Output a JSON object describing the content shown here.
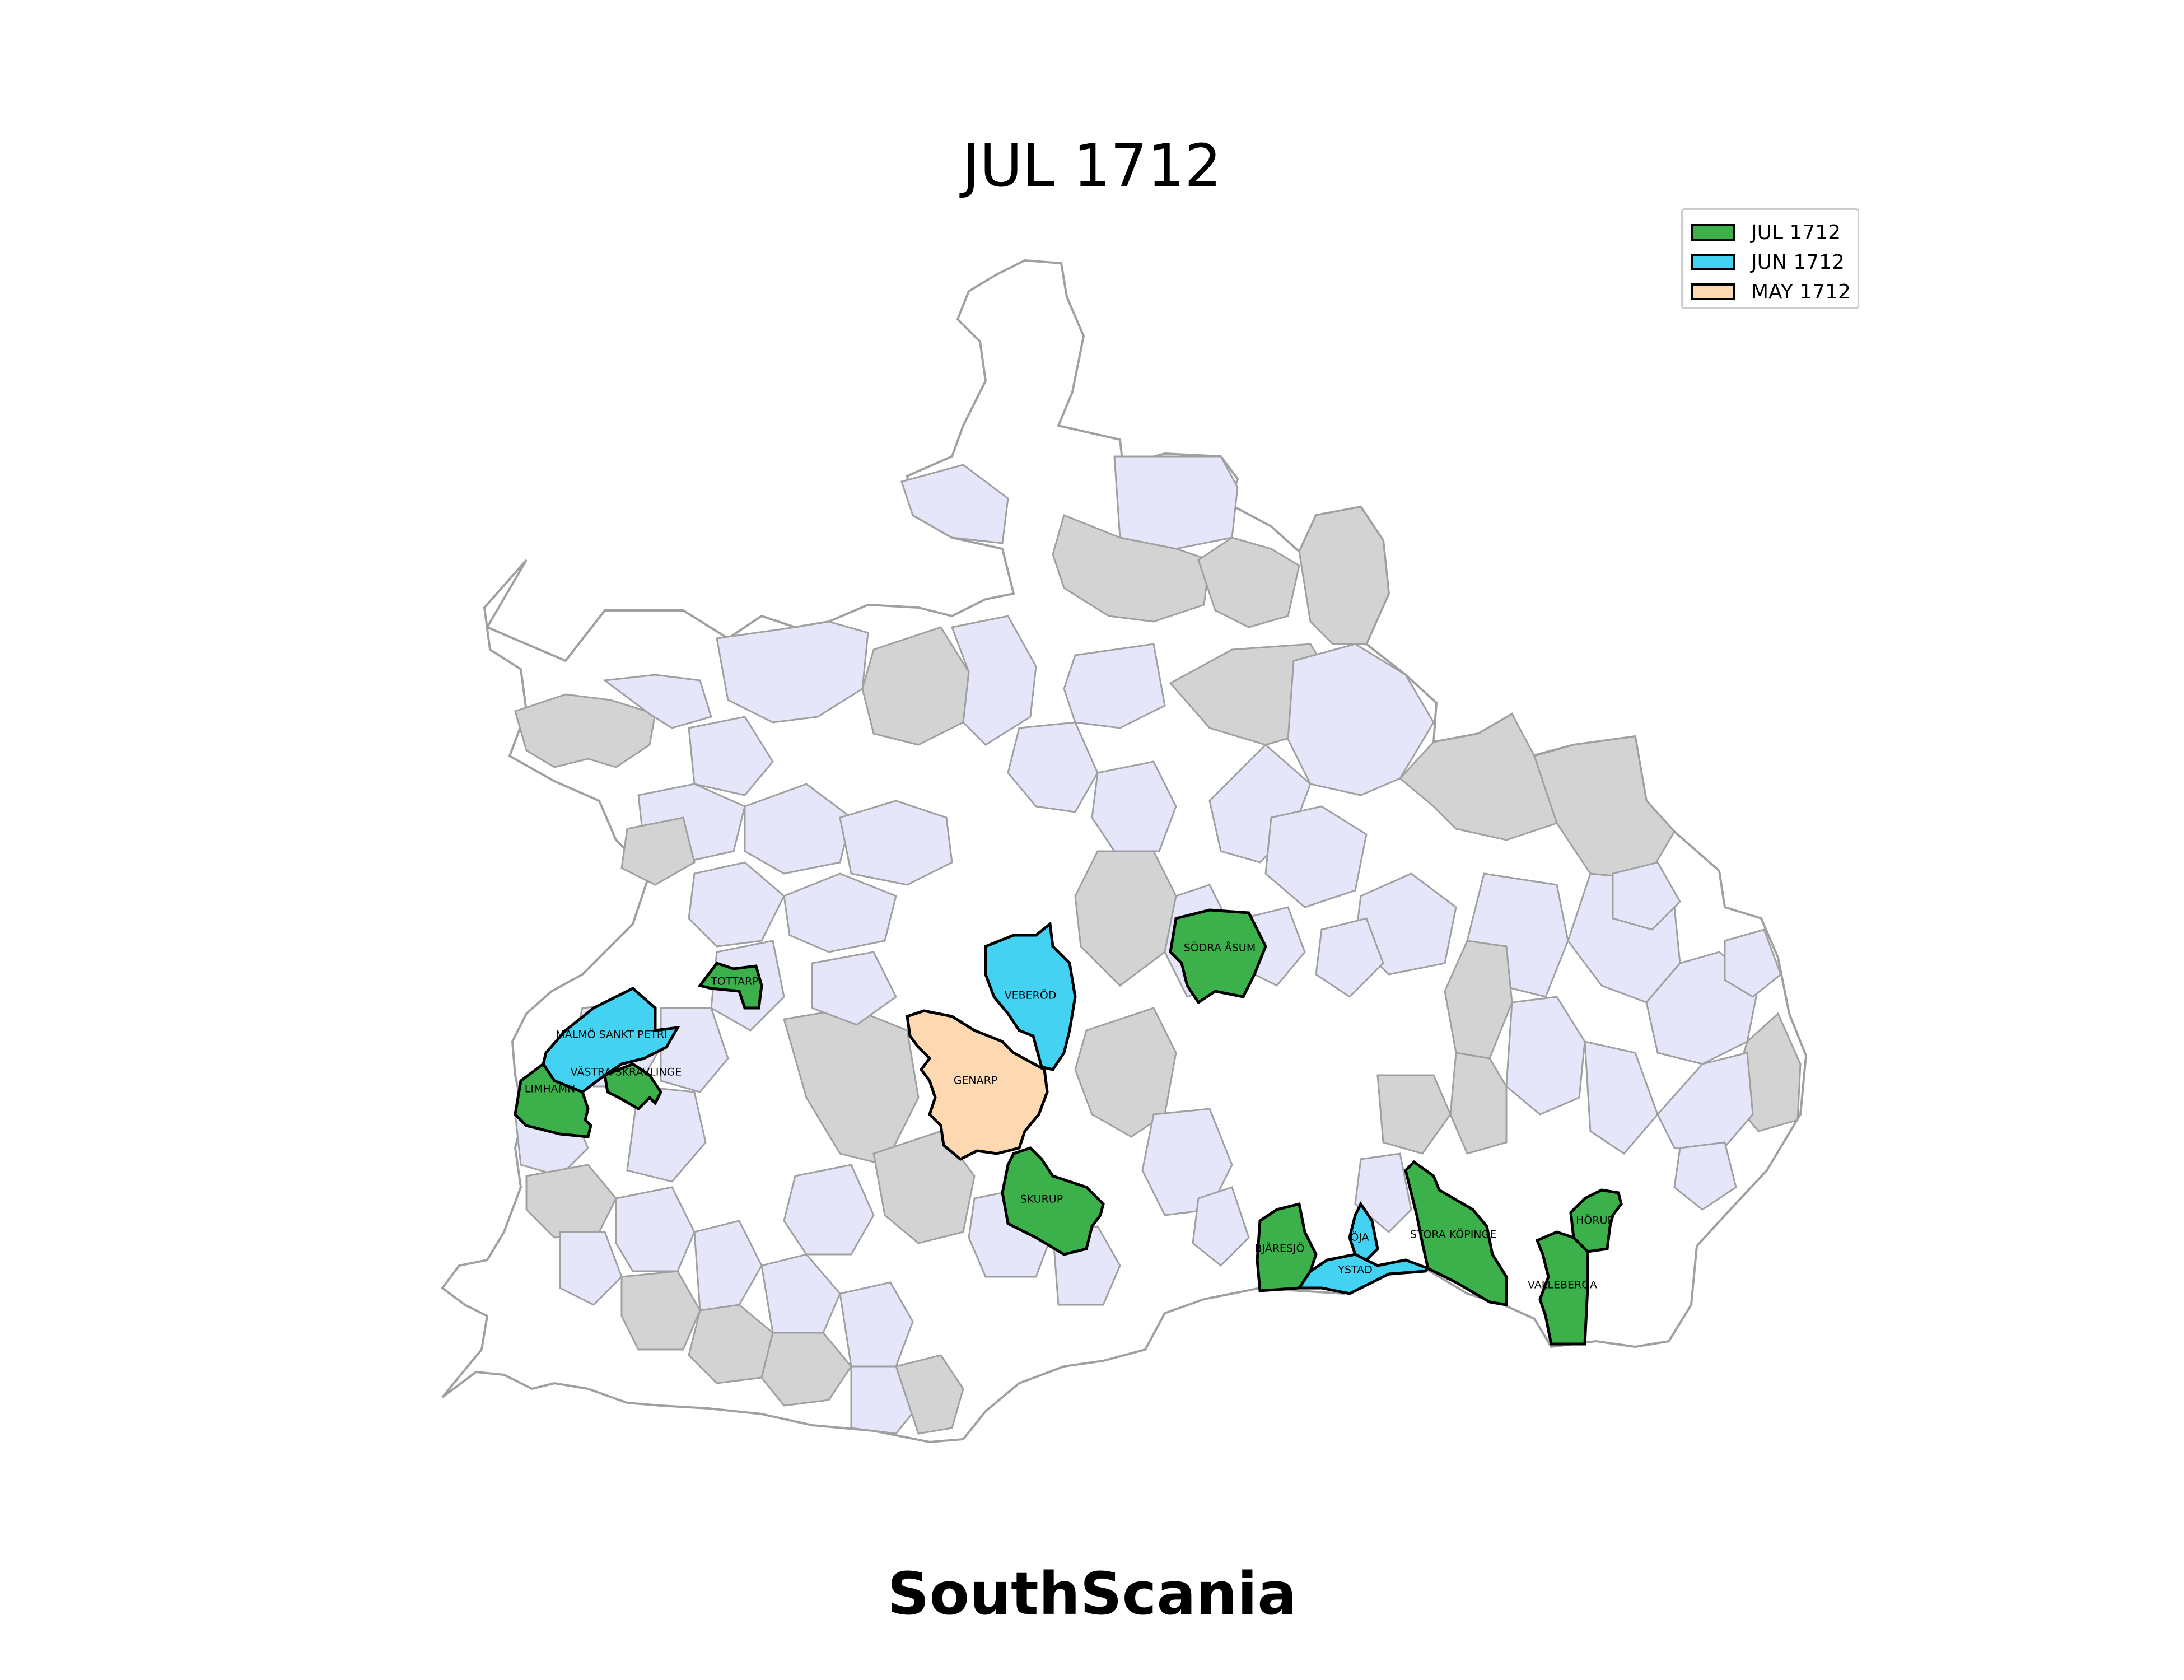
{
  "title": "JUL 1712",
  "footer": "SouthScania",
  "colors": {
    "jul": "#3cb04a",
    "jun": "#44d2f2",
    "may": "#fdd8b0",
    "lavender": "#e6e6fa",
    "gray": "#d3d3d3",
    "white": "#ffffff",
    "border": "#a0a0a0",
    "outline": "#000000"
  },
  "legend": [
    {
      "label": "JUL 1712",
      "color": "#3cb04a"
    },
    {
      "label": "JUN 1712",
      "color": "#44d2f2"
    },
    {
      "label": "MAY 1712",
      "color": "#fdd8b0"
    }
  ],
  "parishes": [
    {
      "name": "SÖDRA ÅSUM",
      "period": "JUL 1712"
    },
    {
      "name": "TOTTARP",
      "period": "JUL 1712"
    },
    {
      "name": "VEBERÖD",
      "period": "JUN 1712"
    },
    {
      "name": "MALMÖ SANKT PETRI",
      "period": "JUN 1712"
    },
    {
      "name": "VÄSTRA SKRAVLINGE",
      "period": "JUL 1712"
    },
    {
      "name": "LIMHAMN",
      "period": "JUL 1712"
    },
    {
      "name": "GENARP",
      "period": "MAY 1712"
    },
    {
      "name": "SKURUP",
      "period": "JUL 1712"
    },
    {
      "name": "BJÄRESJÖ",
      "period": "JUL 1712"
    },
    {
      "name": "ÖJA",
      "period": "JUN 1712"
    },
    {
      "name": "YSTAD",
      "period": "JUN 1712"
    },
    {
      "name": "STORA KÖPINGE",
      "period": "JUL 1712"
    },
    {
      "name": "HÖRUP",
      "period": "JUL 1712"
    },
    {
      "name": "VALLEBERGA",
      "period": "JUL 1712"
    }
  ]
}
